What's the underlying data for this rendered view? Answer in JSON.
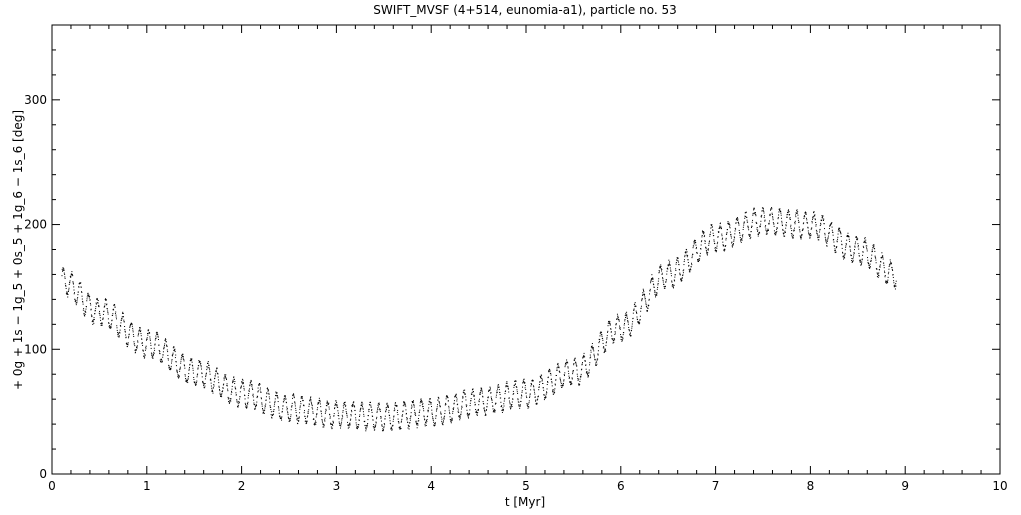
{
  "chart_data": {
    "type": "scatter",
    "title": "SWIFT_MVSF (4+514, eunomia-a1), particle no. 53",
    "xlabel": "t [Myr]",
    "ylabel": "+ 0g + 1s − 1g_5 + 0s_5 + 1g_6 − 1s_6 [deg]",
    "xlim": [
      0,
      10
    ],
    "ylim": [
      0,
      360
    ],
    "x_ticks": [
      0,
      1,
      2,
      3,
      4,
      5,
      6,
      7,
      8,
      9,
      10
    ],
    "y_ticks": [
      0,
      100,
      200,
      300
    ],
    "x_tick_labels": [
      "0",
      "1",
      "2",
      "3",
      "4",
      "5",
      "6",
      "7",
      "8",
      "9",
      "10"
    ],
    "y_tick_labels": [
      "0",
      "100",
      "200",
      "300"
    ],
    "grid": false,
    "legend": "none",
    "marker_color": "#000000",
    "series": [
      {
        "trend": {
          "x": [
            0.1,
            0.5,
            1.0,
            1.5,
            2.0,
            2.5,
            3.0,
            3.5,
            4.0,
            4.5,
            5.0,
            5.5,
            6.0,
            6.5,
            7.0,
            7.5,
            8.0,
            8.5,
            8.9
          ],
          "y": [
            155,
            130,
            105,
            82,
            65,
            53,
            48,
            46,
            50,
            58,
            65,
            82,
            118,
            160,
            190,
            203,
            200,
            180,
            160
          ]
        },
        "x_range": [
          0.1,
          8.9
        ],
        "oscillation_amplitude": 10,
        "oscillation_period": 0.09
      }
    ]
  }
}
